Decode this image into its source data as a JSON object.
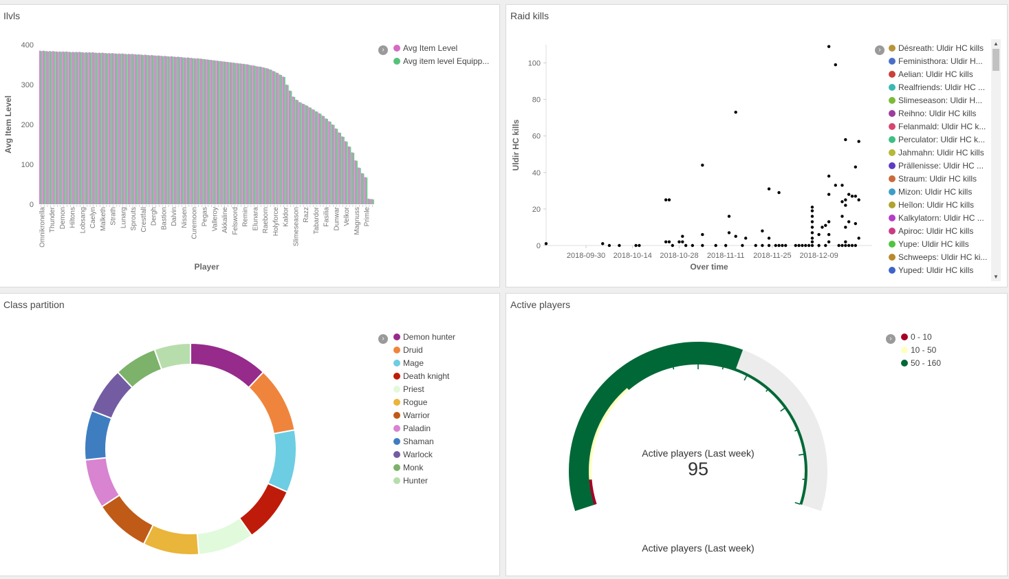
{
  "panels": {
    "ilvls": {
      "title": "Ilvls",
      "legend": [
        {
          "label": "Avg Item Level",
          "color": "#d36bc6"
        },
        {
          "label": "Avg item level Equipp...",
          "color": "#57c17b"
        }
      ],
      "chart_data": {
        "type": "bar",
        "xlabel": "Player",
        "ylabel": "Avg Item Level",
        "ylim": [
          0,
          400
        ],
        "yticks": [
          0,
          100,
          200,
          300,
          400
        ],
        "x_tick_labels": [
          "Omnikronella",
          "Thunder",
          "Demon",
          "Hiltons",
          "Lobsang",
          "Caelyn",
          "Malketh",
          "Strath",
          "Lunarg",
          "Sprouts",
          "Crestfall",
          "Dergh",
          "Bastion",
          "Dalvin",
          "Nissen",
          "Curemoon",
          "Pegas",
          "Valleroy",
          "Akkaline",
          "Felsword",
          "Remin",
          "Elunara",
          "Raeborn",
          "Holyforce",
          "Kaldor",
          "Slimeseason",
          "Razz",
          "Tabardor",
          "Fasilia",
          "Dunwar",
          "Velkor",
          "Magnuss",
          "Primle"
        ],
        "series": [
          {
            "name": "Avg Item Level",
            "values": [
              385,
              385,
              384,
              384,
              384,
              383,
              383,
              383,
              383,
              382,
              382,
              382,
              382,
              381,
              381,
              381,
              381,
              380,
              380,
              380,
              379,
              379,
              379,
              378,
              378,
              378,
              377,
              377,
              377,
              376,
              376,
              375,
              375,
              374,
              374,
              373,
              373,
              372,
              372,
              371,
              371,
              370,
              370,
              369,
              368,
              368,
              367,
              366,
              366,
              365,
              364,
              363,
              362,
              361,
              360,
              359,
              358,
              357,
              356,
              355,
              354,
              353,
              352,
              351,
              349,
              348,
              346,
              345,
              343,
              341,
              338,
              334,
              330,
              325,
              320,
              300,
              285,
              270,
              262,
              256,
              252,
              248,
              243,
              238,
              233,
              228,
              222,
              215,
              208,
              200,
              190,
              180,
              170,
              158,
              145,
              130,
              110,
              92,
              78,
              68,
              14,
              13
            ]
          },
          {
            "name": "Avg item level Equipp...",
            "values": [
              384,
              384,
              383,
              383,
              383,
              382,
              382,
              382,
              382,
              381,
              381,
              381,
              381,
              380,
              380,
              380,
              380,
              379,
              379,
              379,
              378,
              378,
              378,
              377,
              377,
              377,
              376,
              376,
              376,
              375,
              375,
              374,
              374,
              373,
              373,
              372,
              372,
              371,
              371,
              370,
              370,
              369,
              369,
              368,
              367,
              367,
              366,
              365,
              365,
              364,
              363,
              362,
              361,
              360,
              359,
              358,
              357,
              356,
              355,
              354,
              353,
              352,
              351,
              350,
              348,
              347,
              345,
              344,
              342,
              340,
              337,
              333,
              329,
              324,
              319,
              299,
              284,
              269,
              261,
              255,
              251,
              247,
              242,
              237,
              232,
              227,
              221,
              214,
              207,
              199,
              189,
              179,
              169,
              157,
              144,
              129,
              109,
              91,
              77,
              67,
              13,
              12
            ]
          }
        ]
      }
    },
    "raid": {
      "title": "Raid kills",
      "legend": [
        {
          "label": "Désreath: Uldir HC kills",
          "color": "#b9933c"
        },
        {
          "label": "Feministhora: Uldir H...",
          "color": "#4b6fc9"
        },
        {
          "label": "Aelian: Uldir HC kills",
          "color": "#c9413a"
        },
        {
          "label": "Realfriends: Uldir HC ...",
          "color": "#3cb8b2"
        },
        {
          "label": "Slimeseason: Uldir H...",
          "color": "#7cbb3a"
        },
        {
          "label": "Reihno: Uldir HC kills",
          "color": "#9e3c9e"
        },
        {
          "label": "Felanmald: Uldir HC k...",
          "color": "#d6476f"
        },
        {
          "label": "Perculator: Uldir HC k...",
          "color": "#3dbf85"
        },
        {
          "label": "Jahmahn: Uldir HC kills",
          "color": "#b6b83a"
        },
        {
          "label": "Prällenisse: Uldir HC ...",
          "color": "#5a3dc4"
        },
        {
          "label": "Straum: Uldir HC kills",
          "color": "#c96b3c"
        },
        {
          "label": "Mizon: Uldir HC kills",
          "color": "#3c9ec9"
        },
        {
          "label": "Heîlon: Uldir HC kills",
          "color": "#b0a32e"
        },
        {
          "label": "Kalkylatorn: Uldir HC ...",
          "color": "#b63cc9"
        },
        {
          "label": "Apiroc: Uldir HC kills",
          "color": "#c93c86"
        },
        {
          "label": "Yupe: Uldir HC kills",
          "color": "#4fc43c"
        },
        {
          "label": "Schweeps: Uldir HC ki...",
          "color": "#b98a2b"
        },
        {
          "label": "Yuped: Uldir HC kills",
          "color": "#3c64c9"
        }
      ],
      "chart_data": {
        "type": "scatter",
        "xlabel": "Over time",
        "ylabel": "Uldir HC kills",
        "ylim": [
          0,
          110
        ],
        "yticks": [
          0,
          20,
          40,
          60,
          80,
          100
        ],
        "xlim": [
          "2018-09-18",
          "2018-12-25"
        ],
        "xticks": [
          "2018-09-30",
          "2018-10-14",
          "2018-10-28",
          "2018-11-11",
          "2018-11-25",
          "2018-12-09"
        ],
        "points": [
          [
            "2018-09-18",
            1
          ],
          [
            "2018-10-05",
            1
          ],
          [
            "2018-10-07",
            0
          ],
          [
            "2018-10-10",
            0
          ],
          [
            "2018-10-15",
            0
          ],
          [
            "2018-10-16",
            0
          ],
          [
            "2018-10-24",
            25
          ],
          [
            "2018-10-25",
            25
          ],
          [
            "2018-10-24",
            2
          ],
          [
            "2018-10-25",
            2
          ],
          [
            "2018-10-26",
            0
          ],
          [
            "2018-10-28",
            2
          ],
          [
            "2018-10-29",
            5
          ],
          [
            "2018-10-29",
            2
          ],
          [
            "2018-10-30",
            0
          ],
          [
            "2018-11-01",
            0
          ],
          [
            "2018-11-04",
            44
          ],
          [
            "2018-11-04",
            6
          ],
          [
            "2018-11-04",
            0
          ],
          [
            "2018-11-08",
            0
          ],
          [
            "2018-11-11",
            0
          ],
          [
            "2018-11-12",
            7
          ],
          [
            "2018-11-12",
            16
          ],
          [
            "2018-11-14",
            73
          ],
          [
            "2018-11-14",
            5
          ],
          [
            "2018-11-16",
            0
          ],
          [
            "2018-11-17",
            4
          ],
          [
            "2018-11-20",
            0
          ],
          [
            "2018-11-22",
            8
          ],
          [
            "2018-11-22",
            0
          ],
          [
            "2018-11-24",
            31
          ],
          [
            "2018-11-24",
            4
          ],
          [
            "2018-11-24",
            0
          ],
          [
            "2018-11-26",
            0
          ],
          [
            "2018-11-27",
            29
          ],
          [
            "2018-11-27",
            0
          ],
          [
            "2018-11-28",
            0
          ],
          [
            "2018-11-29",
            0
          ],
          [
            "2018-12-02",
            0
          ],
          [
            "2018-12-03",
            0
          ],
          [
            "2018-12-04",
            0
          ],
          [
            "2018-12-05",
            0
          ],
          [
            "2018-12-06",
            0
          ],
          [
            "2018-12-07",
            21
          ],
          [
            "2018-12-07",
            19
          ],
          [
            "2018-12-07",
            16
          ],
          [
            "2018-12-07",
            13
          ],
          [
            "2018-12-07",
            10
          ],
          [
            "2018-12-07",
            7
          ],
          [
            "2018-12-07",
            4
          ],
          [
            "2018-12-07",
            2
          ],
          [
            "2018-12-07",
            0
          ],
          [
            "2018-12-09",
            6
          ],
          [
            "2018-12-09",
            0
          ],
          [
            "2018-12-10",
            10
          ],
          [
            "2018-12-11",
            11
          ],
          [
            "2018-12-11",
            0
          ],
          [
            "2018-12-12",
            109
          ],
          [
            "2018-12-12",
            38
          ],
          [
            "2018-12-12",
            28
          ],
          [
            "2018-12-12",
            13
          ],
          [
            "2018-12-12",
            6
          ],
          [
            "2018-12-12",
            2
          ],
          [
            "2018-12-14",
            99
          ],
          [
            "2018-12-14",
            33
          ],
          [
            "2018-12-15",
            0
          ],
          [
            "2018-12-16",
            33
          ],
          [
            "2018-12-16",
            24
          ],
          [
            "2018-12-16",
            16
          ],
          [
            "2018-12-16",
            0
          ],
          [
            "2018-12-17",
            58
          ],
          [
            "2018-12-17",
            25
          ],
          [
            "2018-12-17",
            22
          ],
          [
            "2018-12-17",
            10
          ],
          [
            "2018-12-17",
            2
          ],
          [
            "2018-12-17",
            0
          ],
          [
            "2018-12-18",
            28
          ],
          [
            "2018-12-18",
            13
          ],
          [
            "2018-12-18",
            0
          ],
          [
            "2018-12-19",
            27
          ],
          [
            "2018-12-19",
            0
          ],
          [
            "2018-12-20",
            43
          ],
          [
            "2018-12-20",
            27
          ],
          [
            "2018-12-20",
            12
          ],
          [
            "2018-12-20",
            0
          ],
          [
            "2018-12-21",
            57
          ],
          [
            "2018-12-21",
            25
          ],
          [
            "2018-12-21",
            4
          ]
        ]
      }
    },
    "class": {
      "title": "Class partition",
      "legend": [
        {
          "label": "Demon hunter",
          "color": "#962b8c",
          "value": 12
        },
        {
          "label": "Druid",
          "color": "#ef853d",
          "value": 10
        },
        {
          "label": "Mage",
          "color": "#6dcde2",
          "value": 9.5
        },
        {
          "label": "Death knight",
          "color": "#bf1b0a",
          "value": 8.5
        },
        {
          "label": "Priest",
          "color": "#e0fadb",
          "value": 8.5
        },
        {
          "label": "Rogue",
          "color": "#e9b53a",
          "value": 8.5
        },
        {
          "label": "Warrior",
          "color": "#c05a17",
          "value": 8.5
        },
        {
          "label": "Paladin",
          "color": "#d884d1",
          "value": 7.5
        },
        {
          "label": "Shaman",
          "color": "#3f7dc1",
          "value": 7.5
        },
        {
          "label": "Warlock",
          "color": "#735ca2",
          "value": 7
        },
        {
          "label": "Monk",
          "color": "#7cb26a",
          "value": 6.5
        },
        {
          "label": "Hunter",
          "color": "#b8ddac",
          "value": 5.5
        }
      ]
    },
    "active": {
      "title": "Active players",
      "legend": [
        {
          "label": "0 - 10",
          "color": "#a50026"
        },
        {
          "label": "10 - 50",
          "color": "#ffffbf"
        },
        {
          "label": "50 - 160",
          "color": "#006837"
        }
      ],
      "gauge": {
        "label": "Active players (Last week)",
        "value": 95,
        "value_text": "95",
        "min": 0,
        "max": 160,
        "bottom_label": "Active players (Last week)"
      }
    }
  }
}
